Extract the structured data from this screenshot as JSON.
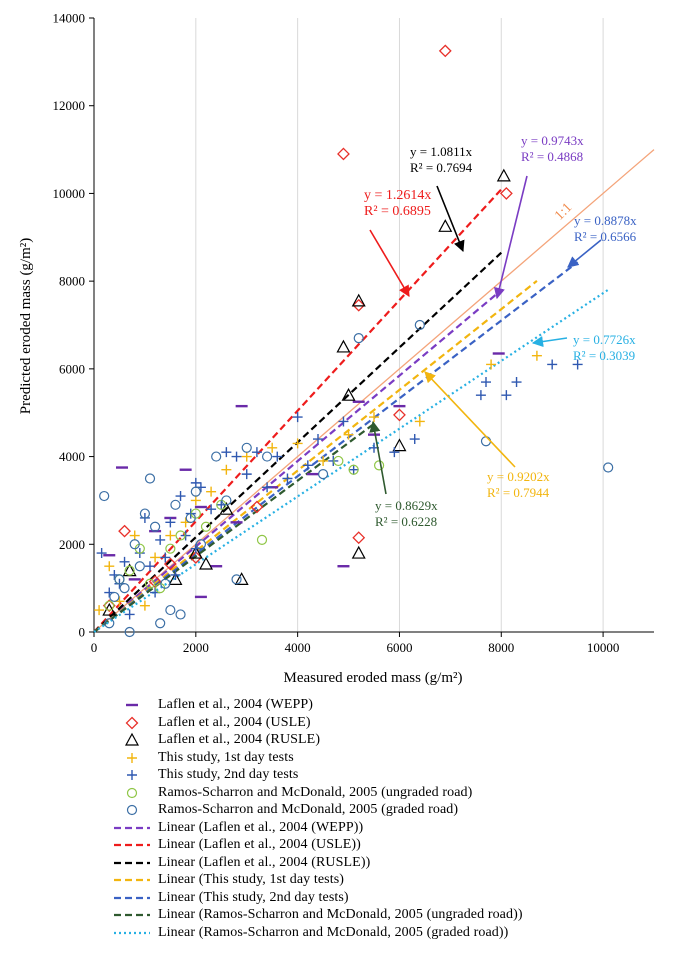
{
  "chart_data": {
    "type": "scatter",
    "xlabel": "Measured eroded mass (g/m²)",
    "ylabel": "Predicted eroded mass (g/m²)",
    "xlim": [
      0,
      11000
    ],
    "ylim": [
      0,
      14000
    ],
    "xticks": [
      0,
      2000,
      4000,
      6000,
      8000,
      10000
    ],
    "yticks": [
      0,
      2000,
      4000,
      6000,
      8000,
      10000,
      12000,
      14000
    ],
    "grid": "vertical",
    "one_to_one_label": "1:1",
    "series": [
      {
        "name": "Laflen et al., 2004 (WEPP)",
        "marker": "dash",
        "color": "#6a2aa8",
        "points": [
          [
            300,
            1750
          ],
          [
            550,
            3750
          ],
          [
            800,
            1200
          ],
          [
            1200,
            2300
          ],
          [
            1500,
            2600
          ],
          [
            1800,
            3700
          ],
          [
            2100,
            2850
          ],
          [
            2100,
            800
          ],
          [
            2400,
            1500
          ],
          [
            2800,
            2500
          ],
          [
            2900,
            5150
          ],
          [
            3500,
            3300
          ],
          [
            4300,
            3600
          ],
          [
            4900,
            1500
          ],
          [
            5200,
            5250
          ],
          [
            5500,
            4500
          ],
          [
            6000,
            5150
          ],
          [
            7950,
            6350
          ]
        ]
      },
      {
        "name": "Laflen et al., 2004 (USLE)",
        "marker": "diamond",
        "color": "#e8302a",
        "points": [
          [
            300,
            600
          ],
          [
            600,
            2300
          ],
          [
            1200,
            1150
          ],
          [
            1500,
            1550
          ],
          [
            2000,
            1700
          ],
          [
            3200,
            2850
          ],
          [
            4900,
            10900
          ],
          [
            5200,
            2150
          ],
          [
            5200,
            7450
          ],
          [
            6000,
            4950
          ],
          [
            6900,
            13250
          ],
          [
            8100,
            10000
          ]
        ]
      },
      {
        "name": "Laflen et al., 2004 (RUSLE)",
        "marker": "triangle",
        "color": "#000000",
        "points": [
          [
            300,
            500
          ],
          [
            700,
            1400
          ],
          [
            1600,
            1200
          ],
          [
            2000,
            1800
          ],
          [
            2200,
            1550
          ],
          [
            2600,
            2800
          ],
          [
            2900,
            1200
          ],
          [
            4900,
            6500
          ],
          [
            5000,
            5400
          ],
          [
            5200,
            1800
          ],
          [
            5200,
            7550
          ],
          [
            6000,
            4250
          ],
          [
            6900,
            9250
          ],
          [
            8050,
            10400
          ]
        ]
      },
      {
        "name": "This study, 1st day tests",
        "marker": "plus",
        "color": "#f2b50f",
        "points": [
          [
            100,
            500
          ],
          [
            300,
            1500
          ],
          [
            500,
            700
          ],
          [
            800,
            2200
          ],
          [
            1000,
            600
          ],
          [
            1200,
            1700
          ],
          [
            1500,
            2200
          ],
          [
            1800,
            2500
          ],
          [
            2000,
            3000
          ],
          [
            2300,
            3200
          ],
          [
            2600,
            3700
          ],
          [
            3000,
            4000
          ],
          [
            3500,
            4200
          ],
          [
            4000,
            4300
          ],
          [
            4500,
            3900
          ],
          [
            5000,
            4500
          ],
          [
            5500,
            4900
          ],
          [
            6400,
            4800
          ],
          [
            7800,
            6100
          ],
          [
            8700,
            6300
          ]
        ]
      },
      {
        "name": "This study, 2nd day tests",
        "marker": "plus",
        "color": "#2f58b0",
        "points": [
          [
            150,
            1800
          ],
          [
            300,
            900
          ],
          [
            400,
            1300
          ],
          [
            500,
            1100
          ],
          [
            600,
            1600
          ],
          [
            700,
            400
          ],
          [
            900,
            1800
          ],
          [
            1000,
            2600
          ],
          [
            1100,
            1500
          ],
          [
            1200,
            900
          ],
          [
            1300,
            2100
          ],
          [
            1400,
            1700
          ],
          [
            1500,
            2500
          ],
          [
            1600,
            1300
          ],
          [
            1700,
            3100
          ],
          [
            1800,
            2200
          ],
          [
            1900,
            2700
          ],
          [
            2000,
            1900
          ],
          [
            2000,
            3400
          ],
          [
            2100,
            3300
          ],
          [
            2300,
            2800
          ],
          [
            2500,
            2900
          ],
          [
            2600,
            4100
          ],
          [
            2800,
            4000
          ],
          [
            3000,
            3600
          ],
          [
            3200,
            4100
          ],
          [
            3400,
            3300
          ],
          [
            3600,
            4000
          ],
          [
            3800,
            3500
          ],
          [
            4000,
            4900
          ],
          [
            4200,
            3800
          ],
          [
            4400,
            4400
          ],
          [
            4700,
            3900
          ],
          [
            4900,
            4800
          ],
          [
            5100,
            3700
          ],
          [
            5500,
            4200
          ],
          [
            5900,
            4100
          ],
          [
            6300,
            4400
          ],
          [
            7600,
            5400
          ],
          [
            7700,
            5700
          ],
          [
            8100,
            5400
          ],
          [
            8300,
            5700
          ],
          [
            9000,
            6100
          ],
          [
            9500,
            6100
          ]
        ]
      },
      {
        "name": "Ramos-Scharron and McDonald, 2005 (ungraded road)",
        "marker": "circle",
        "color": "#8fc646",
        "points": [
          [
            300,
            600
          ],
          [
            500,
            1200
          ],
          [
            700,
            1400
          ],
          [
            900,
            1900
          ],
          [
            1100,
            1100
          ],
          [
            1300,
            1000
          ],
          [
            1500,
            1900
          ],
          [
            1700,
            2200
          ],
          [
            2000,
            2700
          ],
          [
            2200,
            2400
          ],
          [
            2500,
            2900
          ],
          [
            3300,
            2100
          ],
          [
            4800,
            3900
          ],
          [
            5100,
            3700
          ],
          [
            5600,
            3800
          ]
        ]
      },
      {
        "name": "Ramos-Scharron and McDonald, 2005 (graded road)",
        "marker": "circle",
        "color": "#3c6fa5",
        "points": [
          [
            200,
            3100
          ],
          [
            300,
            200
          ],
          [
            400,
            800
          ],
          [
            500,
            1200
          ],
          [
            600,
            1000
          ],
          [
            700,
            0
          ],
          [
            800,
            2000
          ],
          [
            900,
            1500
          ],
          [
            1000,
            2700
          ],
          [
            1100,
            3500
          ],
          [
            1200,
            2400
          ],
          [
            1300,
            200
          ],
          [
            1400,
            1100
          ],
          [
            1500,
            500
          ],
          [
            1600,
            2900
          ],
          [
            1700,
            400
          ],
          [
            1900,
            2600
          ],
          [
            2000,
            3200
          ],
          [
            2100,
            2000
          ],
          [
            2400,
            4000
          ],
          [
            2600,
            3000
          ],
          [
            2800,
            1200
          ],
          [
            3000,
            4200
          ],
          [
            3400,
            4000
          ],
          [
            4500,
            3600
          ],
          [
            5200,
            6700
          ],
          [
            6400,
            7000
          ],
          [
            7700,
            4350
          ],
          [
            10100,
            3750
          ]
        ]
      }
    ],
    "fits": [
      {
        "name": "Linear (Laflen et al., 2004 (WEPP))",
        "style": "dashed",
        "color": "#7a3cc3",
        "slope": 0.9743,
        "x_end": 8000,
        "equation": "y = 0.9743x",
        "r2": "R² = 0.4868"
      },
      {
        "name": "Linear (Laflen et al., 2004 (USLE))",
        "style": "dashed",
        "color": "#ee1c1c",
        "slope": 1.2614,
        "x_end": 8000,
        "equation": "y = 1.2614x",
        "r2": "R² = 0.6895"
      },
      {
        "name": "Linear (Laflen et al., 2004 (RUSLE))",
        "style": "dashed",
        "color": "#000000",
        "slope": 1.0811,
        "x_end": 8000,
        "equation": "y = 1.0811x",
        "r2": "R² = 0.7694"
      },
      {
        "name": "Linear (This study, 1st day tests)",
        "style": "dashed",
        "color": "#f2b50f",
        "slope": 0.9202,
        "x_end": 8700,
        "equation": "y = 0.9202x",
        "r2": "R² = 0.7944"
      },
      {
        "name": "Linear (This study, 2nd day tests)",
        "style": "dashed",
        "color": "#3a62c4",
        "slope": 0.8878,
        "x_end": 9500,
        "equation": "y = 0.8878x",
        "r2": "R² = 0.6566"
      },
      {
        "name": "Linear (Ramos-Scharron and McDonald, 2005 (ungraded road))",
        "style": "dashed",
        "color": "#2f5a2f",
        "slope": 0.8629,
        "x_end": 5500,
        "equation": "y = 0.8629x",
        "r2": "R² = 0.6228"
      },
      {
        "name": "Linear (Ramos-Scharron and McDonald, 2005 (graded road))",
        "style": "dotted",
        "color": "#27b0e3",
        "slope": 0.7726,
        "x_end": 10100,
        "equation": "y = 0.7726x",
        "r2": "R² = 0.3039"
      }
    ]
  }
}
